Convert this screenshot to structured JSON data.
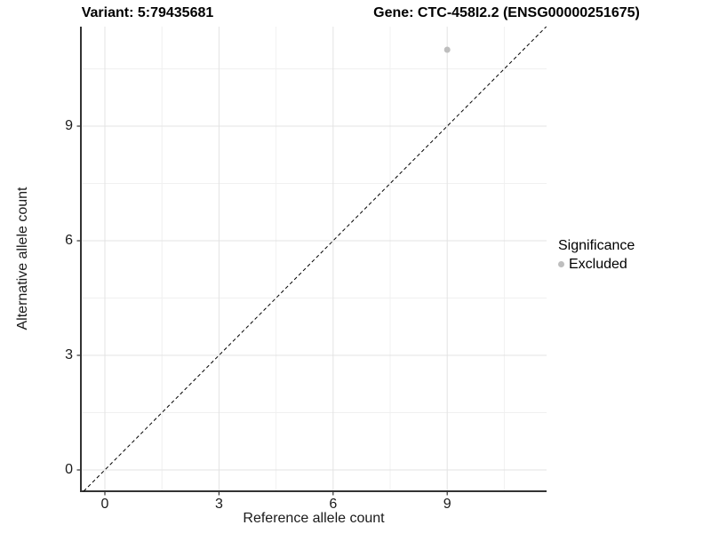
{
  "titles": {
    "left": "Variant: 5:79435681",
    "right": "Gene: CTC-458I2.2 (ENSG00000251675)"
  },
  "chart_data": {
    "type": "scatter",
    "xlabel": "Reference allele count",
    "ylabel": "Alternative allele count",
    "xtick_labels": [
      "0",
      "3",
      "6",
      "9"
    ],
    "ytick_labels": [
      "0",
      "3",
      "6",
      "9"
    ],
    "xtick_values": [
      0,
      3,
      6,
      9
    ],
    "ytick_values": [
      0,
      3,
      6,
      9
    ],
    "minor_tick_values": [
      1.5,
      4.5,
      7.5,
      10.5
    ],
    "xlim": [
      -0.63,
      11.61
    ],
    "ylim": [
      -0.56,
      11.6
    ],
    "grid": "major+minor",
    "points": [
      {
        "x": 9,
        "y": 11,
        "significance": "Excluded",
        "color": "#bebebe"
      }
    ],
    "reference_line": {
      "equation": "y = x",
      "style": "dashed",
      "color": "#000000"
    },
    "legend": {
      "position": "right",
      "title": "Significance",
      "items": [
        {
          "label": "Excluded",
          "color": "#bebebe",
          "marker": "circle"
        }
      ]
    },
    "colors": {
      "grid_major": "#e3e3e3",
      "grid_minor": "#f0f0f0",
      "axis_line": "#333333",
      "tick_mark": "#333333",
      "text": "#1a1a1a"
    }
  }
}
